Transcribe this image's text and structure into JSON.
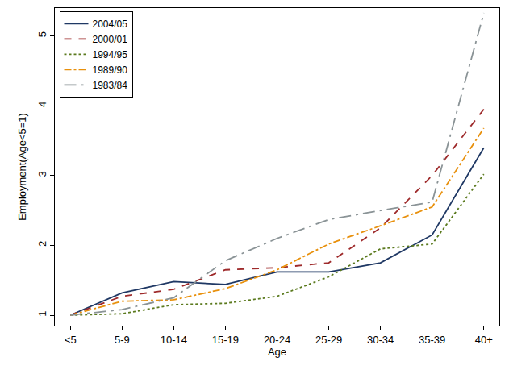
{
  "chart_data": {
    "type": "line",
    "x_label": "Age",
    "y_label": "Employment(Age<5=1)",
    "categories": [
      "<5",
      "5-9",
      "10-14",
      "15-19",
      "20-24",
      "25-29",
      "30-34",
      "35-39",
      "40+"
    ],
    "series": [
      {
        "name": "2004/05",
        "color": "#1f3864",
        "line_style": "solid",
        "values": [
          1,
          1.32,
          1.48,
          1.44,
          1.62,
          1.62,
          1.75,
          2.15,
          3.4
        ]
      },
      {
        "name": "2000/01",
        "color": "#9e2a2b",
        "line_style": "dash",
        "values": [
          1,
          1.27,
          1.37,
          1.65,
          1.68,
          1.75,
          2.25,
          3.0,
          3.95
        ]
      },
      {
        "name": "1994/95",
        "color": "#5b7a1e",
        "line_style": "dot",
        "values": [
          1,
          1.02,
          1.15,
          1.17,
          1.27,
          1.55,
          1.95,
          2.02,
          3.02
        ]
      },
      {
        "name": "1989/90",
        "color": "#e8900c",
        "line_style": "dashdot",
        "values": [
          1,
          1.2,
          1.22,
          1.38,
          1.65,
          2.02,
          2.28,
          2.55,
          3.68
        ]
      },
      {
        "name": "1983/84",
        "color": "#8a9396",
        "line_style": "longdashdot",
        "values": [
          1,
          1.08,
          1.25,
          1.78,
          2.1,
          2.37,
          2.5,
          2.62,
          5.33
        ]
      }
    ],
    "ylim": [
      0.85,
      5.4
    ],
    "yticks": [
      1,
      2,
      3,
      4,
      5
    ],
    "grid": false,
    "legend": "top-left"
  }
}
